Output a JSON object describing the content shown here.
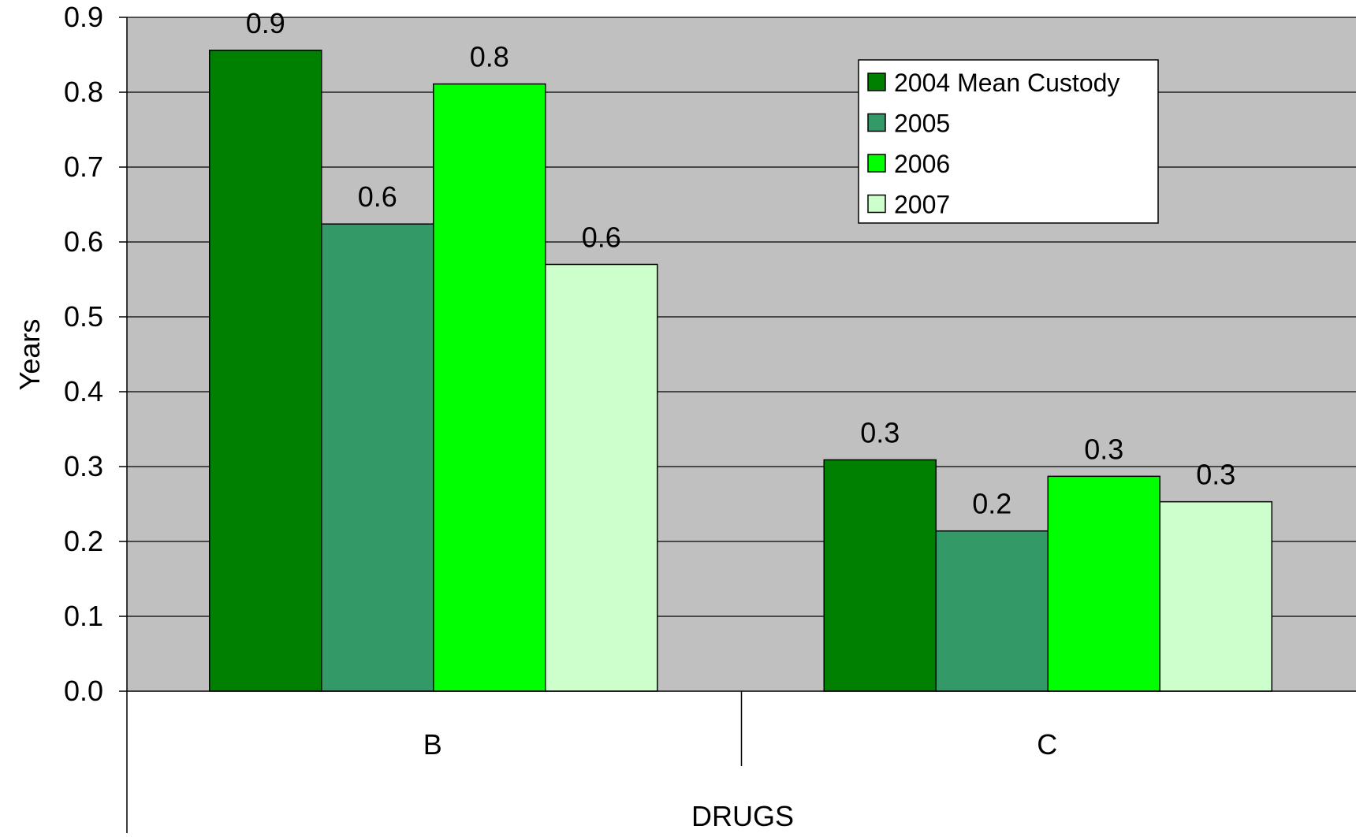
{
  "chart_data": {
    "type": "bar",
    "title": "",
    "xlabel": "DRUGS",
    "ylabel": "Years",
    "ylim": [
      0,
      0.9
    ],
    "yticks": [
      0.0,
      0.1,
      0.2,
      0.3,
      0.4,
      0.5,
      0.6,
      0.7,
      0.8,
      0.9
    ],
    "ytick_labels": [
      "0.0",
      "0.1",
      "0.2",
      "0.3",
      "0.4",
      "0.5",
      "0.6",
      "0.7",
      "0.8",
      "0.9"
    ],
    "grid": true,
    "legend_position": "top-right",
    "plot_background": "#c0c0c0",
    "categories": [
      "B",
      "C"
    ],
    "series": [
      {
        "name": "2004 Mean Custody",
        "color": "#008000",
        "values": [
          0.856,
          0.309
        ],
        "labels": [
          "0.9",
          "0.3"
        ]
      },
      {
        "name": "2005",
        "color": "#339966",
        "values": [
          0.624,
          0.214
        ],
        "labels": [
          "0.6",
          "0.2"
        ]
      },
      {
        "name": "2006",
        "color": "#00ff00",
        "values": [
          0.811,
          0.287
        ],
        "labels": [
          "0.8",
          "0.3"
        ]
      },
      {
        "name": "2007",
        "color": "#ccffcc",
        "values": [
          0.57,
          0.253
        ],
        "labels": [
          "0.6",
          "0.3"
        ]
      }
    ]
  }
}
